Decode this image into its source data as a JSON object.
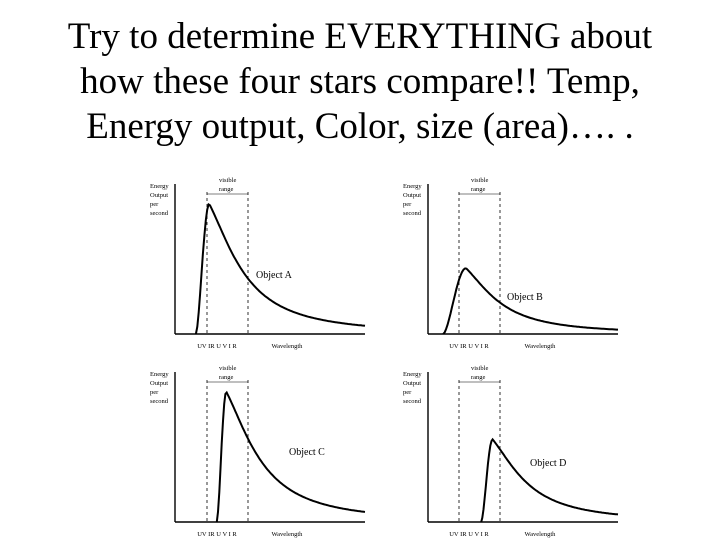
{
  "title_lines": [
    "Try to determine EVERYTHING about",
    "how these four stars compare!!  Temp,",
    "Energy output, Color, size (area)…. ."
  ],
  "panels": [
    {
      "object_label": "Object A",
      "y_label_lines": [
        "Energy",
        "Output",
        "per",
        "second"
      ],
      "visible_label_lines": [
        "visible",
        "range"
      ],
      "uv_label": "UV IR U V I R",
      "x_label": "Wavelength",
      "curve": {
        "peak_wavelength_rel": 0.18,
        "peak_height_rel": 0.93,
        "start_wavelength_rel": 0.11
      }
    },
    {
      "object_label": "Object B",
      "y_label_lines": [
        "Energy",
        "Output",
        "per",
        "second"
      ],
      "visible_label_lines": [
        "visible",
        "range"
      ],
      "uv_label": "UV IR U V I R",
      "x_label": "Wavelength",
      "curve": {
        "peak_wavelength_rel": 0.2,
        "peak_height_rel": 0.47,
        "start_wavelength_rel": 0.08
      }
    },
    {
      "object_label": "Object C",
      "y_label_lines": [
        "Energy",
        "Output",
        "per",
        "second"
      ],
      "visible_label_lines": [
        "visible",
        "range"
      ],
      "uv_label": "UV IR U V I R",
      "x_label": "Wavelength",
      "curve": {
        "peak_wavelength_rel": 0.27,
        "peak_height_rel": 0.93,
        "start_wavelength_rel": 0.22
      }
    },
    {
      "object_label": "Object D",
      "y_label_lines": [
        "Energy",
        "Output",
        "per",
        "second"
      ],
      "visible_label_lines": [
        "visible",
        "range"
      ],
      "uv_label": "UV IR U V I R",
      "x_label": "Wavelength",
      "curve": {
        "peak_wavelength_rel": 0.34,
        "peak_height_rel": 0.59,
        "start_wavelength_rel": 0.28
      }
    }
  ]
}
